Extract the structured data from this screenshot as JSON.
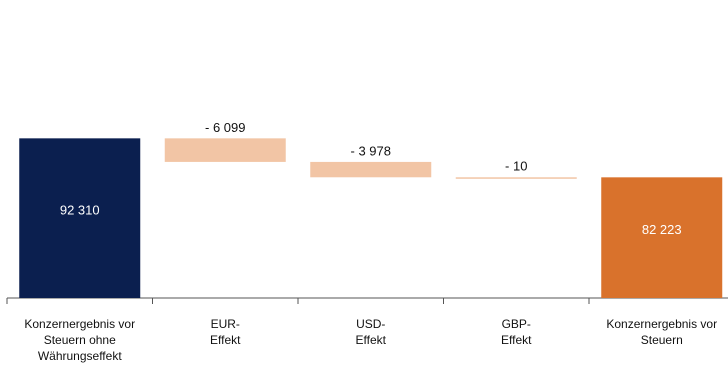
{
  "chart_data": {
    "type": "waterfall",
    "categories": [
      [
        "Konzernergebnis vor",
        "Steuern ohne",
        "Währungseffekt"
      ],
      [
        "EUR-",
        "Effekt"
      ],
      [
        "USD-",
        "Effekt"
      ],
      [
        "GBP-",
        "Effekt"
      ],
      [
        "Konzernergebnis vor",
        "Steuern"
      ]
    ],
    "values": [
      92310,
      -6099,
      -3978,
      -10,
      82223
    ],
    "value_labels": [
      "92 310",
      "- 6 099",
      "- 3 978",
      "- 10",
      "82 223"
    ],
    "is_total": [
      true,
      false,
      false,
      false,
      true
    ],
    "colors": [
      "#0b1f4f",
      "#f2c5a5",
      "#f2c5a5",
      "#f2c5a5",
      "#d9722c"
    ],
    "ylim": [
      51000,
      125000
    ]
  }
}
